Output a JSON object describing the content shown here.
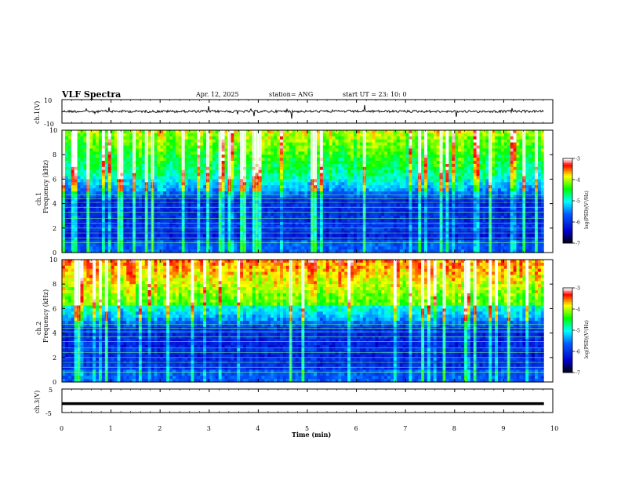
{
  "header": {
    "title": "VLF Spectra",
    "date": "Apr. 12, 2025",
    "station": "station= ANG",
    "start_ut": "start  UT =   23: 10: 0"
  },
  "chart_data": [
    {
      "type": "line",
      "name": "panel-ch1-voltage",
      "ylabel": "ch.1(V)",
      "ylim": [
        -10,
        10
      ],
      "yticks": [
        "10",
        "-10"
      ],
      "xlim": [
        0,
        10
      ],
      "series": [
        {
          "x": [
            0,
            9.82
          ],
          "y": [
            0,
            0
          ]
        }
      ]
    },
    {
      "type": "heatmap",
      "name": "panel-ch1-spectrogram",
      "ylabel": "ch.1\nFrequency (kHz)",
      "ylim": [
        0,
        10
      ],
      "yticks": [
        "0",
        "2",
        "4",
        "6",
        "8",
        "10"
      ],
      "xlim": [
        0,
        10
      ],
      "colorbar": {
        "label": "log(PSD)(V²/Hz)",
        "range": [
          -7,
          -3
        ],
        "ticks": [
          "-3",
          "-4",
          "-5",
          "-6",
          "-7"
        ]
      }
    },
    {
      "type": "heatmap",
      "name": "panel-ch2-spectrogram",
      "ylabel": "ch.2\nFrequency (kHz)",
      "ylim": [
        0,
        10
      ],
      "yticks": [
        "0",
        "2",
        "4",
        "6",
        "8",
        "10"
      ],
      "xlim": [
        0,
        10
      ],
      "colorbar": {
        "label": "log(PSD)(V²/Hz)",
        "range": [
          -7,
          -3
        ],
        "ticks": [
          "-3",
          "-4",
          "-5",
          "-6",
          "-7"
        ]
      }
    },
    {
      "type": "line",
      "name": "panel-ch3-voltage",
      "ylabel": "ch.3(V)",
      "ylim": [
        -5,
        5
      ],
      "yticks": [
        "5",
        "-5"
      ],
      "xlim": [
        0,
        10
      ],
      "series": [
        {
          "x": [
            0,
            9.82
          ],
          "y": [
            -1.2,
            -1.2
          ]
        }
      ]
    }
  ],
  "x_axis": {
    "label": "Time  (min)",
    "ticks": [
      "0",
      "1",
      "2",
      "3",
      "4",
      "5",
      "6",
      "7",
      "8",
      "9",
      "10"
    ]
  },
  "colors": {
    "scale": [
      "#000000",
      "#0000ff",
      "#00ffff",
      "#00ff00",
      "#ffff00",
      "#ff0000",
      "#ffffff"
    ]
  }
}
